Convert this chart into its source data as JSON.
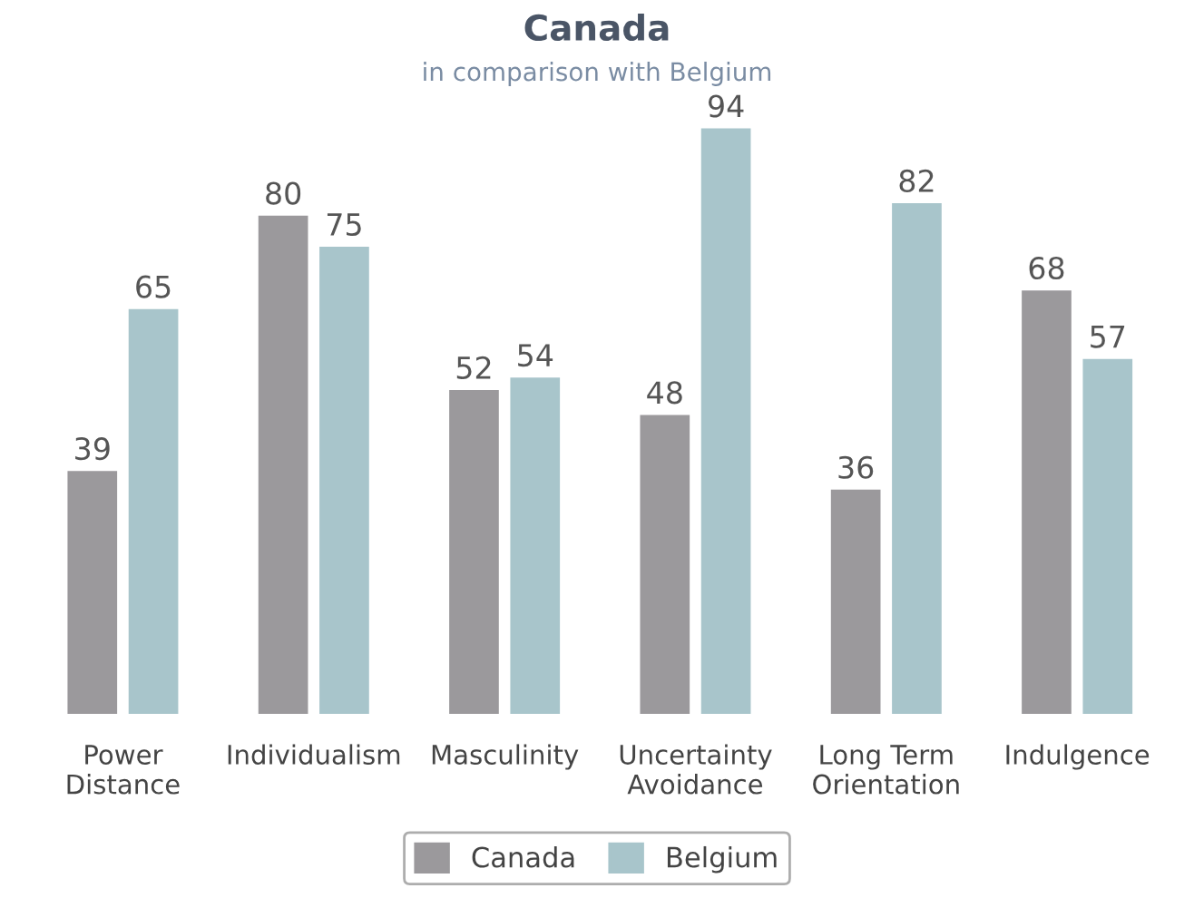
{
  "chart_data": {
    "type": "bar",
    "title": "Canada",
    "subtitle": "in comparison with Belgium",
    "categories": [
      "Power\nDistance",
      "Individualism",
      "Masculinity",
      "Uncertainty\nAvoidance",
      "Long Term\nOrientation",
      "Indulgence"
    ],
    "series": [
      {
        "name": "Canada",
        "color": "#9b999c",
        "values": [
          39,
          80,
          52,
          48,
          36,
          68
        ]
      },
      {
        "name": "Belgium",
        "color": "#a8c5cb",
        "values": [
          65,
          75,
          54,
          94,
          82,
          57
        ]
      }
    ],
    "data_labels": true,
    "legend": "bottom",
    "grid": false
  }
}
